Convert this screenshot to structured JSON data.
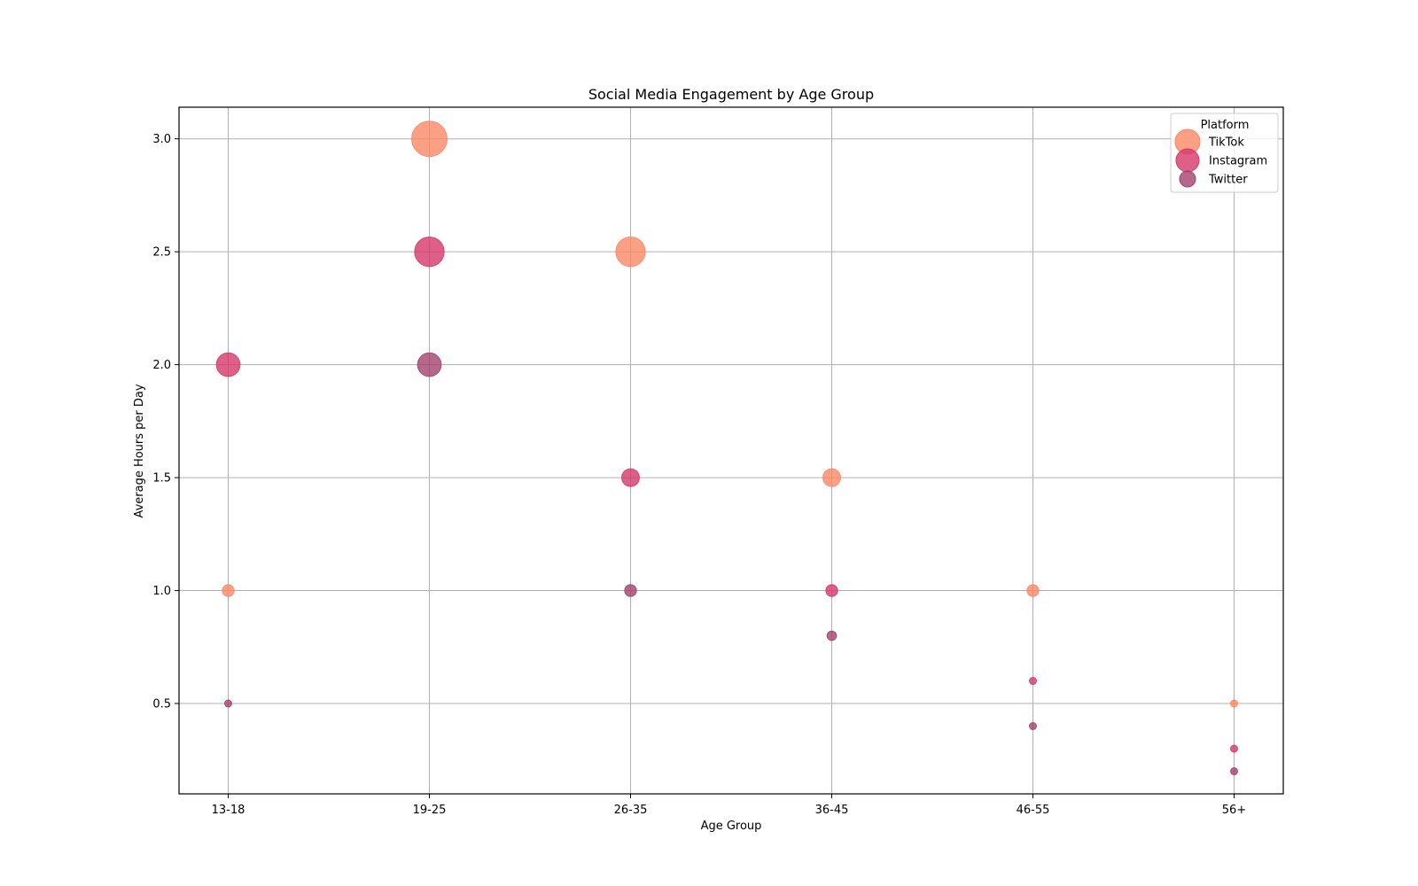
{
  "chart_data": {
    "type": "scatter",
    "title": "Social Media Engagement by Age Group",
    "xlabel": "Age Group",
    "ylabel": "Average Hours per Day",
    "categories": [
      "13-18",
      "19-25",
      "26-35",
      "36-45",
      "46-55",
      "56+"
    ],
    "ylim": [
      0.1,
      3.14
    ],
    "yticks": [
      "0.5",
      "1.0",
      "1.5",
      "2.0",
      "2.5",
      "3.0"
    ],
    "grid": true,
    "legend": {
      "title": "Platform",
      "placement": "top-right"
    },
    "bubble_size_encoding": "relative to hours per day",
    "series": [
      {
        "name": "TikTok",
        "color": "#FA8867",
        "values": [
          1.0,
          3.0,
          2.5,
          1.5,
          1.0,
          0.5
        ]
      },
      {
        "name": "Instagram",
        "color": "#D6386A",
        "values": [
          2.0,
          2.5,
          1.5,
          1.0,
          0.6,
          0.3
        ]
      },
      {
        "name": "Twitter",
        "color": "#A3426E",
        "values": [
          0.5,
          2.0,
          1.0,
          0.8,
          0.4,
          0.2
        ]
      }
    ]
  }
}
